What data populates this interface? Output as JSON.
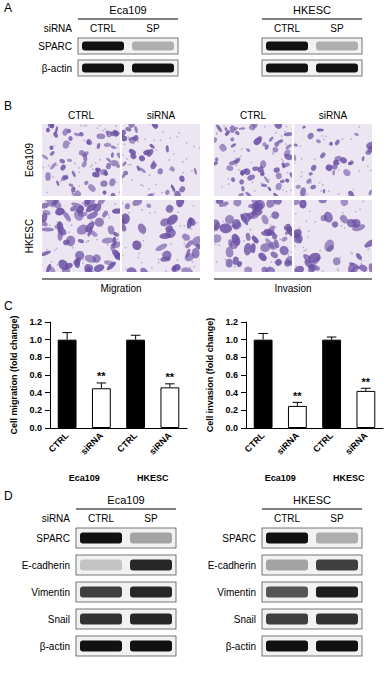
{
  "panels": {
    "A": {
      "label": "A",
      "lanes": [
        "CTRL",
        "SP"
      ],
      "blots": [
        {
          "cell_line": "Eca109",
          "treatment_label": "siRNA",
          "proteins": [
            "SPARC",
            "β-actin"
          ],
          "intensity": [
            [
              1.0,
              0.3
            ],
            [
              1.0,
              1.0
            ]
          ]
        },
        {
          "cell_line": "HKESC",
          "intensity": [
            [
              1.0,
              0.3
            ],
            [
              1.0,
              1.0
            ]
          ]
        }
      ]
    },
    "B": {
      "label": "B",
      "columns": [
        "CTRL",
        "siRNA",
        "CTRL",
        "siRNA"
      ],
      "rows": [
        "Eca109",
        "HKESC"
      ],
      "assays": [
        "Migration",
        "Invasion"
      ]
    },
    "C": {
      "label": "C"
    },
    "D": {
      "label": "D",
      "lanes": [
        "CTRL",
        "SP"
      ],
      "blots": [
        {
          "cell_line": "Eca109",
          "treatment_label": "siRNA",
          "proteins": [
            "SPARC",
            "E-cadherin",
            "Vimentin",
            "Snail",
            "β-actin"
          ],
          "intensity": [
            [
              1.0,
              0.35
            ],
            [
              0.2,
              0.9
            ],
            [
              0.8,
              0.9
            ],
            [
              0.85,
              0.9
            ],
            [
              1.0,
              1.0
            ]
          ]
        },
        {
          "cell_line": "HKESC",
          "proteins": [
            "SPARC",
            "E-cadherin",
            "Vimentin",
            "Snail",
            "β-actin"
          ],
          "intensity": [
            [
              1.0,
              0.3
            ],
            [
              0.35,
              0.8
            ],
            [
              0.7,
              0.95
            ],
            [
              0.8,
              0.85
            ],
            [
              1.0,
              1.0
            ]
          ]
        }
      ]
    }
  },
  "chart_data": [
    {
      "type": "bar",
      "y_label": "Cell migration (fold change)",
      "categories": [
        "CTRL",
        "siRNA",
        "CTRL",
        "siRNA"
      ],
      "groups": [
        "Eca109",
        "Eca109",
        "HKESC",
        "HKESC"
      ],
      "values": [
        1.0,
        0.45,
        1.0,
        0.46
      ],
      "errors": [
        0.08,
        0.06,
        0.05,
        0.04
      ],
      "significance": [
        null,
        "**",
        null,
        "**"
      ],
      "colors": [
        "#000000",
        "#ffffff",
        "#000000",
        "#ffffff"
      ],
      "ylim": [
        0,
        1.2
      ],
      "yticks": [
        {
          "value": 0,
          "label": "0.0"
        },
        {
          "value": 0.2,
          "label": "0.2"
        },
        {
          "value": 0.4,
          "label": "0.4"
        },
        {
          "value": 0.6,
          "label": "0.6"
        },
        {
          "value": 0.8,
          "label": "0.8"
        },
        {
          "value": 1.0,
          "label": "1.0"
        },
        {
          "value": 1.2,
          "label": "1.2"
        }
      ],
      "grid": false
    },
    {
      "type": "bar",
      "y_label": "Cell invasion (fold change)",
      "categories": [
        "CTRL",
        "siRNA",
        "CTRL",
        "siRNA"
      ],
      "groups": [
        "Eca109",
        "Eca109",
        "HKESC",
        "HKESC"
      ],
      "values": [
        1.0,
        0.25,
        1.0,
        0.42
      ],
      "errors": [
        0.07,
        0.04,
        0.03,
        0.03
      ],
      "significance": [
        null,
        "**",
        null,
        "**"
      ],
      "colors": [
        "#000000",
        "#ffffff",
        "#000000",
        "#ffffff"
      ],
      "ylim": [
        0,
        1.2
      ],
      "yticks": [
        {
          "value": 0,
          "label": "0.0"
        },
        {
          "value": 0.2,
          "label": "0.2"
        },
        {
          "value": 0.4,
          "label": "0.4"
        },
        {
          "value": 0.6,
          "label": "0.6"
        },
        {
          "value": 0.8,
          "label": "0.8"
        },
        {
          "value": 1.0,
          "label": "1.0"
        },
        {
          "value": 1.2,
          "label": "1.2"
        }
      ],
      "grid": false
    }
  ]
}
